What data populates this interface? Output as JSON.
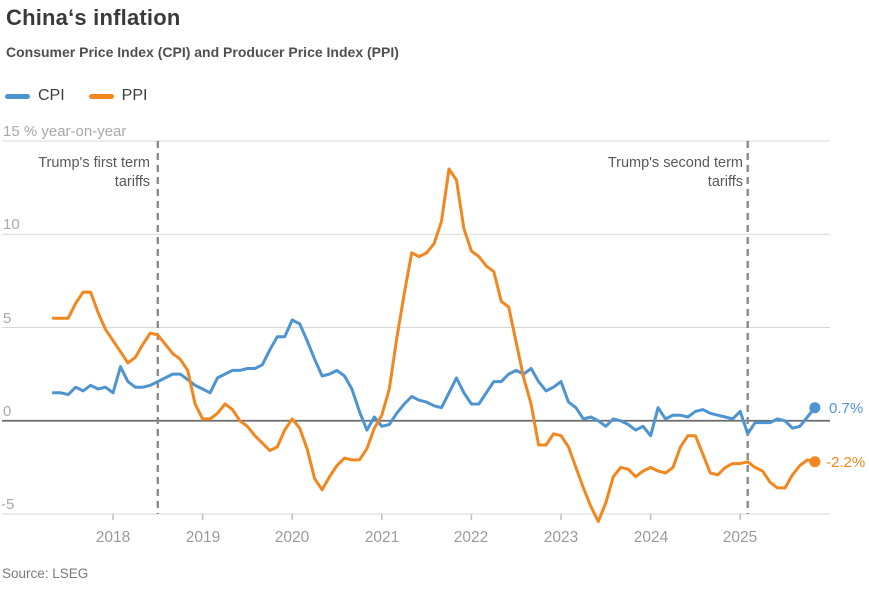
{
  "header": {
    "title": "China‘s inflation",
    "subtitle": "Consumer Price Index (CPI) and Producer Price Index (PPI)"
  },
  "legend": {
    "items": [
      {
        "label": "CPI",
        "color": "#4D94D0"
      },
      {
        "label": "PPI",
        "color": "#F2871F"
      }
    ]
  },
  "y_axis": {
    "top_label": "15 % year-on-year",
    "labels": [
      "10",
      "5",
      "0",
      "-5"
    ]
  },
  "annotations": [
    {
      "text": "Trump's first term\ntariffs",
      "x_month": "2018-07"
    },
    {
      "text": "Trump's second term\ntariffs",
      "x_month": "2025-02"
    }
  ],
  "end_labels": {
    "cpi": "0.7%",
    "ppi": "-2.2%"
  },
  "source": "Source: LSEG",
  "chart_data": {
    "type": "line",
    "title": "China‘s inflation",
    "subtitle": "Consumer Price Index (CPI) and Producer Price Index (PPI)",
    "ylabel": "% year-on-year",
    "ylim": [
      -5,
      15
    ],
    "yticks": [
      15,
      10,
      5,
      0,
      -5
    ],
    "grid": "horizontal",
    "legend_position": "top-left",
    "x_start": "2017-05",
    "x_freq": "monthly",
    "x_tick_labels": [
      "2018",
      "2019",
      "2020",
      "2021",
      "2022",
      "2023",
      "2024",
      "2025"
    ],
    "event_lines": [
      {
        "label": "Trump's first term tariffs",
        "x_month": "2018-07"
      },
      {
        "label": "Trump's second term tariffs",
        "x_month": "2025-02"
      }
    ],
    "series": [
      {
        "name": "CPI",
        "color": "#4D94D0",
        "end_label": "0.7%",
        "values": [
          1.5,
          1.5,
          1.4,
          1.8,
          1.6,
          1.9,
          1.7,
          1.8,
          1.5,
          2.9,
          2.1,
          1.8,
          1.8,
          1.9,
          2.1,
          2.3,
          2.5,
          2.5,
          2.2,
          1.9,
          1.7,
          1.5,
          2.3,
          2.5,
          2.7,
          2.7,
          2.8,
          2.8,
          3.0,
          3.8,
          4.5,
          4.5,
          5.4,
          5.2,
          4.3,
          3.3,
          2.4,
          2.5,
          2.7,
          2.4,
          1.7,
          0.5,
          -0.5,
          0.2,
          -0.3,
          -0.2,
          0.4,
          0.9,
          1.3,
          1.1,
          1.0,
          0.8,
          0.7,
          1.5,
          2.3,
          1.5,
          0.9,
          0.9,
          1.5,
          2.1,
          2.1,
          2.5,
          2.7,
          2.5,
          2.8,
          2.1,
          1.6,
          1.8,
          2.1,
          1.0,
          0.7,
          0.1,
          0.2,
          0.0,
          -0.3,
          0.1,
          0.0,
          -0.2,
          -0.5,
          -0.3,
          -0.8,
          0.7,
          0.1,
          0.3,
          0.3,
          0.2,
          0.5,
          0.6,
          0.4,
          0.3,
          0.2,
          0.1,
          0.5,
          -0.7,
          -0.1,
          -0.1,
          -0.1,
          0.1,
          0.0,
          -0.4,
          -0.3,
          0.2,
          0.7
        ]
      },
      {
        "name": "PPI",
        "color": "#F2871F",
        "end_label": "-2.2%",
        "values": [
          5.5,
          5.5,
          5.5,
          6.3,
          6.9,
          6.9,
          5.8,
          4.9,
          4.3,
          3.7,
          3.1,
          3.4,
          4.1,
          4.7,
          4.6,
          4.1,
          3.6,
          3.3,
          2.7,
          0.9,
          0.1,
          0.1,
          0.4,
          0.9,
          0.6,
          0.0,
          -0.3,
          -0.8,
          -1.2,
          -1.6,
          -1.4,
          -0.5,
          0.1,
          -0.4,
          -1.5,
          -3.1,
          -3.7,
          -3.0,
          -2.4,
          -2.0,
          -2.1,
          -2.1,
          -1.5,
          -0.4,
          0.3,
          1.7,
          4.4,
          6.8,
          9.0,
          8.8,
          9.0,
          9.5,
          10.7,
          13.5,
          12.9,
          10.3,
          9.1,
          8.8,
          8.3,
          8.0,
          6.4,
          6.1,
          4.2,
          2.3,
          0.9,
          -1.3,
          -1.3,
          -0.7,
          -0.8,
          -1.4,
          -2.5,
          -3.6,
          -4.6,
          -5.4,
          -4.4,
          -3.0,
          -2.5,
          -2.6,
          -3.0,
          -2.7,
          -2.5,
          -2.7,
          -2.8,
          -2.5,
          -1.4,
          -0.8,
          -0.8,
          -1.8,
          -2.8,
          -2.9,
          -2.5,
          -2.3,
          -2.3,
          -2.2,
          -2.5,
          -2.7,
          -3.3,
          -3.6,
          -3.6,
          -2.9,
          -2.4,
          -2.1,
          -2.2
        ]
      }
    ]
  }
}
